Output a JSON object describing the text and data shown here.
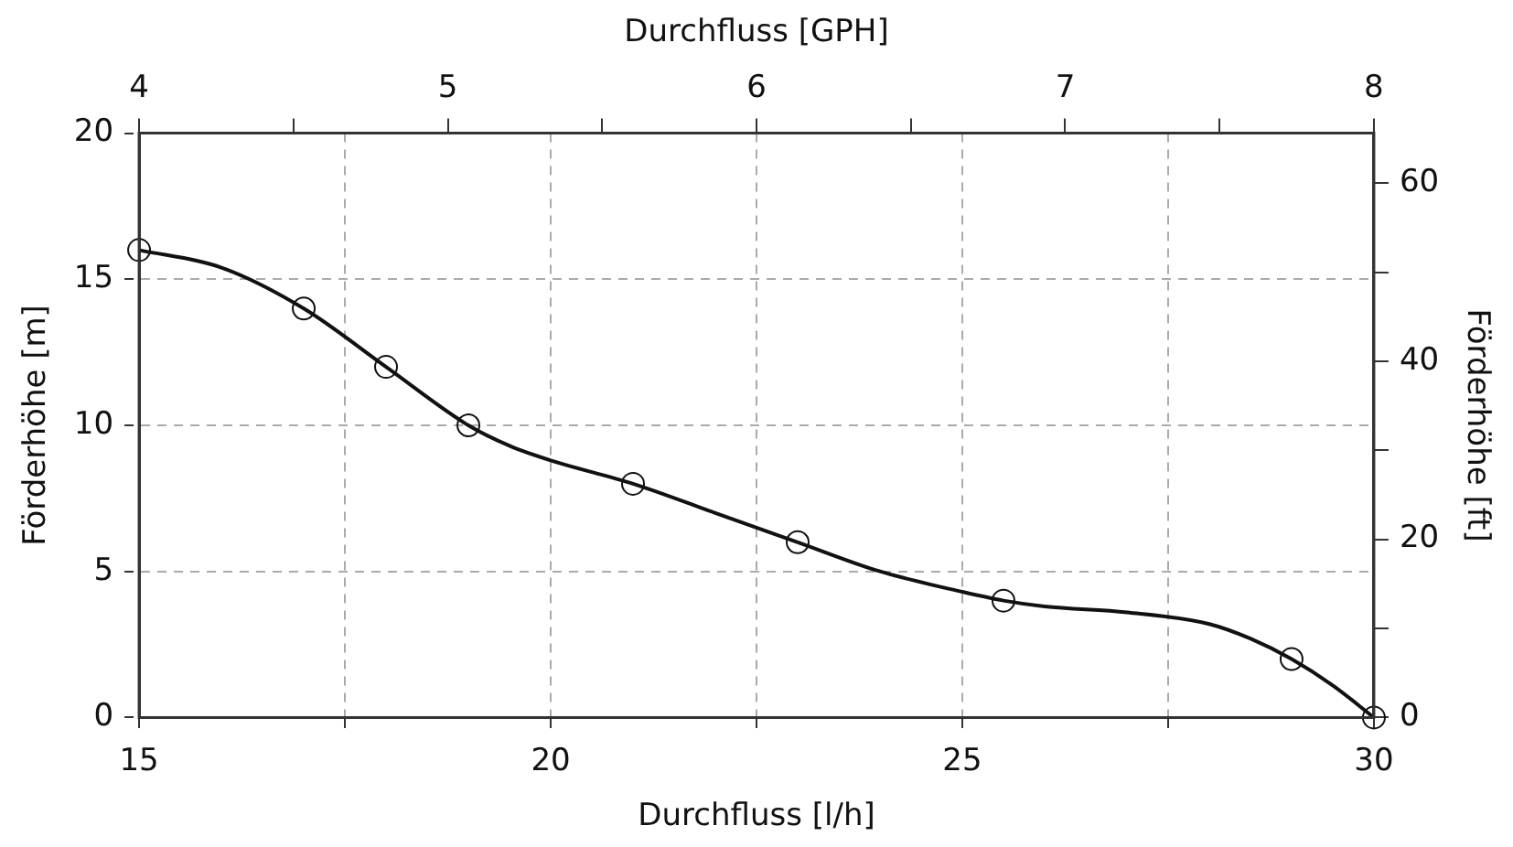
{
  "chart_data": {
    "type": "line",
    "xlabel": "Durchfluss [l/h]",
    "x2label": "Durchfluss [GPH]",
    "ylabel": "Förderhöhe [m]",
    "y2label": "Förderhöhe [ft]",
    "xlim": [
      15,
      30
    ],
    "xticks": [
      15,
      {
        "value": 17.5,
        "label": null
      },
      20,
      {
        "value": 22.5,
        "label": null
      },
      25,
      {
        "value": 27.5,
        "label": null
      },
      30
    ],
    "x2lim": [
      4,
      8
    ],
    "x2ticks": [
      4,
      {
        "value": 4.5,
        "label": null
      },
      5,
      {
        "value": 5.5,
        "label": null
      },
      6,
      {
        "value": 6.5,
        "label": null
      },
      7,
      {
        "value": 7.5,
        "label": null
      },
      8
    ],
    "ylim": [
      0,
      20
    ],
    "yticks": [
      0,
      5,
      10,
      15,
      20
    ],
    "y2lim": [
      0,
      65.6
    ],
    "y2ticks": [
      0,
      {
        "value": 10,
        "label": null
      },
      20,
      {
        "value": 30,
        "label": null
      },
      40,
      {
        "value": 50,
        "label": null
      },
      60
    ],
    "grid": true,
    "legend": false,
    "series": [
      {
        "color": "#111111",
        "marker": "none",
        "line_style": "solid",
        "x": [
          15,
          16,
          17,
          18,
          19,
          19.5,
          20,
          21,
          22,
          23,
          24,
          25,
          25.5,
          26,
          27,
          28,
          28.5,
          29,
          29.5,
          30
        ],
        "values": [
          16,
          15.4,
          14,
          12,
          10,
          9.3,
          8.8,
          8,
          7,
          6,
          5,
          4.3,
          4,
          3.8,
          3.6,
          3.2,
          2.7,
          2,
          1.1,
          0
        ]
      },
      {
        "type": "scatter",
        "color": "#111111",
        "marker": "circle",
        "x": [
          15,
          17,
          18,
          19,
          21,
          23,
          25.5,
          29,
          30
        ],
        "values": [
          16,
          14,
          12,
          10,
          8,
          6,
          4,
          2,
          0
        ]
      }
    ]
  }
}
